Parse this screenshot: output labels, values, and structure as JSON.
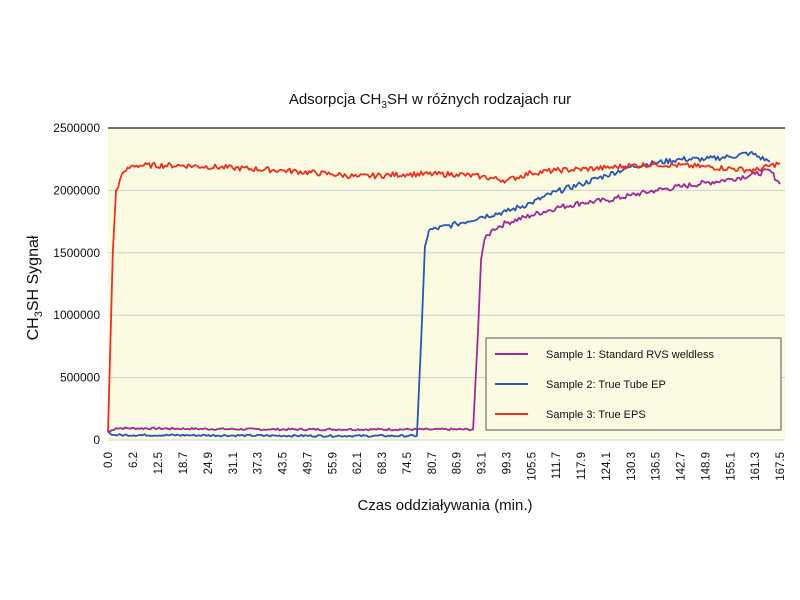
{
  "chart_data": {
    "type": "line",
    "title_parts": {
      "pre": "Adsorpcja CH",
      "sub": "3",
      "post": "SH w różnych rodzajach rur"
    },
    "ylabel_parts": {
      "pre": "CH",
      "sub": "3",
      "post": "SH Sygnał"
    },
    "xlabel": "Czas oddziaływania (min.)",
    "x_ticks": [
      "0.0",
      "6.2",
      "12.5",
      "18.7",
      "24.9",
      "31.1",
      "37.3",
      "43.5",
      "49.7",
      "55.9",
      "62.1",
      "68.3",
      "74.5",
      "80.7",
      "86.9",
      "93.1",
      "99.3",
      "105.5",
      "111.7",
      "117.9",
      "124.1",
      "130.3",
      "136.5",
      "142.7",
      "148.9",
      "155.1",
      "161.3",
      "167.5"
    ],
    "y_ticks": [
      "0",
      "500000",
      "1000000",
      "1500000",
      "2000000",
      "2500000"
    ],
    "ylim": [
      0,
      2500000
    ],
    "xlim": [
      0,
      167.5
    ],
    "grid": "horizontal",
    "legend_position": "inside-right",
    "colors": {
      "series1": "#a3279b",
      "series2": "#2a56b8",
      "series3": "#ee2f22",
      "background": "#fbfbe2"
    },
    "series": [
      {
        "name": "Sample 1: Standard RVS weldless",
        "color": "#a3279b",
        "points": [
          [
            0.0,
            60000
          ],
          [
            2.0,
            95000
          ],
          [
            20,
            90000
          ],
          [
            40,
            85000
          ],
          [
            60,
            85000
          ],
          [
            80,
            85000
          ],
          [
            91,
            85000
          ],
          [
            92.2,
            850000
          ],
          [
            93.0,
            1450000
          ],
          [
            93.8,
            1600000
          ],
          [
            96,
            1690000
          ],
          [
            99.3,
            1740000
          ],
          [
            105.5,
            1800000
          ],
          [
            111.7,
            1860000
          ],
          [
            117.9,
            1900000
          ],
          [
            124.1,
            1920000
          ],
          [
            130.3,
            1960000
          ],
          [
            136.5,
            2000000
          ],
          [
            142.7,
            2030000
          ],
          [
            148.9,
            2060000
          ],
          [
            155.1,
            2090000
          ],
          [
            161.3,
            2130000
          ],
          [
            165,
            2160000
          ],
          [
            167.5,
            2050000
          ]
        ]
      },
      {
        "name": "Sample 2: True Tube EP",
        "color": "#2a56b8",
        "points": [
          [
            0.0,
            80000
          ],
          [
            1.0,
            40000
          ],
          [
            20,
            38000
          ],
          [
            40,
            35000
          ],
          [
            60,
            33000
          ],
          [
            77,
            33000
          ],
          [
            78.2,
            900000
          ],
          [
            79.0,
            1550000
          ],
          [
            80.0,
            1680000
          ],
          [
            86.9,
            1730000
          ],
          [
            93.1,
            1790000
          ],
          [
            99.3,
            1830000
          ],
          [
            105.5,
            1900000
          ],
          [
            111.7,
            1990000
          ],
          [
            117.9,
            2050000
          ],
          [
            124.1,
            2120000
          ],
          [
            130.3,
            2190000
          ],
          [
            136.5,
            2220000
          ],
          [
            142.7,
            2250000
          ],
          [
            148.9,
            2250000
          ],
          [
            155.1,
            2270000
          ],
          [
            160,
            2300000
          ],
          [
            165,
            2230000
          ]
        ]
      },
      {
        "name": "Sample 3: True EPS",
        "color": "#ee2f22",
        "points": [
          [
            0.0,
            60000
          ],
          [
            1.2,
            1500000
          ],
          [
            2.0,
            2000000
          ],
          [
            4.0,
            2150000
          ],
          [
            6.2,
            2200000
          ],
          [
            18.7,
            2200000
          ],
          [
            31.1,
            2180000
          ],
          [
            43.5,
            2160000
          ],
          [
            55.9,
            2130000
          ],
          [
            62.1,
            2110000
          ],
          [
            74.5,
            2130000
          ],
          [
            86.9,
            2130000
          ],
          [
            93.1,
            2110000
          ],
          [
            99.3,
            2080000
          ],
          [
            105.5,
            2140000
          ],
          [
            111.7,
            2160000
          ],
          [
            124.1,
            2180000
          ],
          [
            130.3,
            2200000
          ],
          [
            136.5,
            2210000
          ],
          [
            148.9,
            2190000
          ],
          [
            161.3,
            2160000
          ],
          [
            167.5,
            2220000
          ]
        ]
      }
    ]
  }
}
